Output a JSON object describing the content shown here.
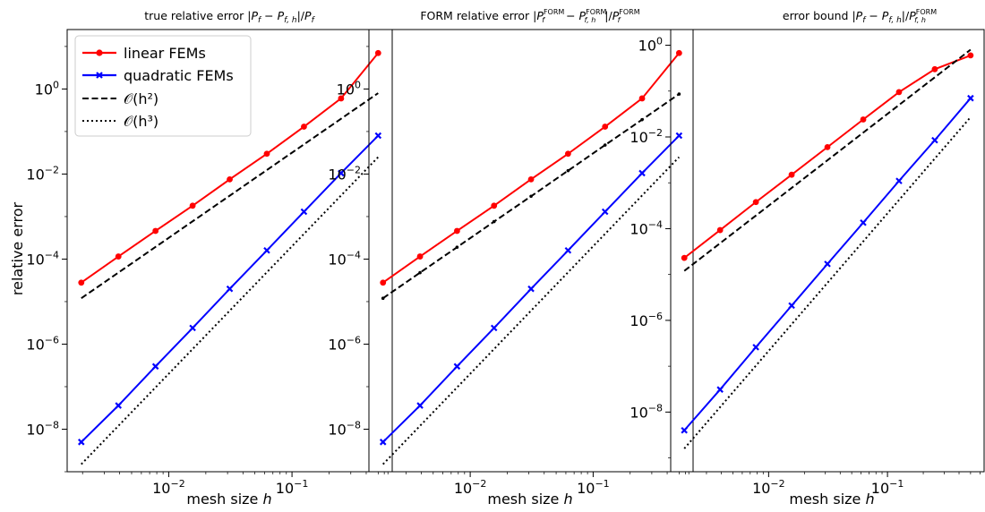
{
  "shared": {
    "ylabel": "relative error",
    "xlabel_text": "mesh size ",
    "xlabel_var": "h",
    "x_ticks": [
      {
        "value": 0.01,
        "base": "10",
        "exp": "−2"
      },
      {
        "value": 0.1,
        "base": "10",
        "exp": "−1"
      }
    ]
  },
  "legend": {
    "location": "upper-left of first panel",
    "entries": [
      {
        "label": "linear FEMs",
        "color": "#ff0000",
        "style": "solid",
        "marker": "dot"
      },
      {
        "label": "quadratic FEMs",
        "color": "#0000ff",
        "style": "solid",
        "marker": "x"
      },
      {
        "label": "𝒪(h²)",
        "color": "#000000",
        "style": "dashed",
        "marker": "none"
      },
      {
        "label": "𝒪(h³)",
        "color": "#000000",
        "style": "dotted",
        "marker": "none"
      }
    ]
  },
  "chart_data": [
    {
      "type": "line",
      "title": "true relative error |P_f − P_{f,h}|/P_f",
      "xlabel": "mesh size h",
      "ylabel": "relative error",
      "xscale": "log",
      "yscale": "log",
      "grid": false,
      "xlim": [
        0.0015,
        0.65
      ],
      "ylim": [
        1e-09,
        25
      ],
      "y_ticks": [
        {
          "value": 1e-08,
          "base": "10",
          "exp": "−8"
        },
        {
          "value": 1e-06,
          "base": "10",
          "exp": "−6"
        },
        {
          "value": 0.0001,
          "base": "10",
          "exp": "−4"
        },
        {
          "value": 0.01,
          "base": "10",
          "exp": "−2"
        },
        {
          "value": 1,
          "base": "10",
          "exp": "0"
        }
      ],
      "x": [
        0.001953,
        0.003906,
        0.007813,
        0.015625,
        0.03125,
        0.0625,
        0.125,
        0.25,
        0.5
      ],
      "series": [
        {
          "name": "linear FEMs",
          "color": "#ff0000",
          "style": "solid",
          "marker": "dot",
          "values": [
            2.8e-05,
            0.000115,
            0.00046,
            0.0018,
            0.0075,
            0.03,
            0.13,
            0.6,
            7.0
          ]
        },
        {
          "name": "quadratic FEMs",
          "color": "#0000ff",
          "style": "solid",
          "marker": "x",
          "values": [
            5e-09,
            3.6e-08,
            3e-07,
            2.4e-06,
            2e-05,
            0.00016,
            0.0013,
            0.0105,
            0.08
          ]
        },
        {
          "name": "𝒪(h²)",
          "color": "#000000",
          "style": "dashed",
          "marker": "none",
          "x": [
            0.001953,
            0.5
          ],
          "values": [
            1.2e-05,
            0.8
          ]
        },
        {
          "name": "𝒪(h³)",
          "color": "#000000",
          "style": "dotted",
          "marker": "none",
          "x": [
            0.001953,
            0.5
          ],
          "values": [
            1.5e-09,
            0.025
          ]
        }
      ]
    },
    {
      "type": "line",
      "title": "FORM relative error |P_f^FORM − P_{f,h}^FORM|/P_f^FORM",
      "xlabel": "mesh size h",
      "ylabel": "",
      "xscale": "log",
      "yscale": "log",
      "grid": false,
      "xlim": [
        0.0015,
        0.65
      ],
      "ylim": [
        1e-09,
        25
      ],
      "y_ticks": [
        {
          "value": 1e-08,
          "base": "10",
          "exp": "−8"
        },
        {
          "value": 1e-06,
          "base": "10",
          "exp": "−6"
        },
        {
          "value": 0.0001,
          "base": "10",
          "exp": "−4"
        },
        {
          "value": 0.01,
          "base": "10",
          "exp": "−2"
        },
        {
          "value": 1,
          "base": "10",
          "exp": "0"
        }
      ],
      "x": [
        0.001953,
        0.003906,
        0.007813,
        0.015625,
        0.03125,
        0.0625,
        0.125,
        0.25,
        0.5
      ],
      "series": [
        {
          "name": "linear FEMs",
          "color": "#ff0000",
          "style": "solid",
          "marker": "dot",
          "values": [
            2.8e-05,
            0.000115,
            0.00046,
            0.0018,
            0.0075,
            0.03,
            0.13,
            0.6,
            7.0
          ]
        },
        {
          "name": "quadratic FEMs",
          "color": "#0000ff",
          "style": "solid",
          "marker": "x",
          "values": [
            5e-09,
            3.6e-08,
            3e-07,
            2.4e-06,
            2e-05,
            0.00016,
            0.0013,
            0.0105,
            0.08
          ]
        },
        {
          "name": "𝒪(h²)",
          "color": "#000000",
          "style": "dashed",
          "marker": "small-dot",
          "values": [
            1.2e-05,
            4.8e-05,
            0.00019,
            0.00076,
            0.003,
            0.012,
            0.048,
            0.19,
            0.76
          ]
        },
        {
          "name": "𝒪(h³)",
          "color": "#000000",
          "style": "dotted",
          "marker": "none",
          "x": [
            0.001953,
            0.5
          ],
          "values": [
            1.5e-09,
            0.025
          ]
        }
      ]
    },
    {
      "type": "line",
      "title": "error bound |P_f − P_{f,h}|/P_{f,h}^FORM",
      "xlabel": "mesh size h",
      "ylabel": "",
      "xscale": "log",
      "yscale": "log",
      "grid": false,
      "xlim": [
        0.0015,
        0.65
      ],
      "ylim": [
        5e-10,
        2.2
      ],
      "y_ticks": [
        {
          "value": 1e-08,
          "base": "10",
          "exp": "−8"
        },
        {
          "value": 1e-06,
          "base": "10",
          "exp": "−6"
        },
        {
          "value": 0.0001,
          "base": "10",
          "exp": "−4"
        },
        {
          "value": 0.01,
          "base": "10",
          "exp": "−2"
        },
        {
          "value": 1,
          "base": "10",
          "exp": "0"
        }
      ],
      "x": [
        0.001953,
        0.003906,
        0.007813,
        0.015625,
        0.03125,
        0.0625,
        0.125,
        0.25,
        0.5
      ],
      "series": [
        {
          "name": "linear FEMs",
          "color": "#ff0000",
          "style": "solid",
          "marker": "dot",
          "values": [
            2.3e-05,
            9.3e-05,
            0.00038,
            0.0015,
            0.006,
            0.024,
            0.095,
            0.3,
            0.6
          ]
        },
        {
          "name": "quadratic FEMs",
          "color": "#0000ff",
          "style": "solid",
          "marker": "x",
          "values": [
            4e-09,
            3.1e-08,
            2.6e-07,
            2.1e-06,
            1.7e-05,
            0.000135,
            0.0011,
            0.0085,
            0.07
          ]
        },
        {
          "name": "𝒪(h²)",
          "color": "#000000",
          "style": "dashed",
          "marker": "none",
          "x": [
            0.001953,
            0.5
          ],
          "values": [
            1.2e-05,
            0.8
          ]
        },
        {
          "name": "𝒪(h³)",
          "color": "#000000",
          "style": "dotted",
          "marker": "none",
          "x": [
            0.001953,
            0.5
          ],
          "values": [
            1.6e-09,
            0.027
          ]
        }
      ]
    }
  ]
}
